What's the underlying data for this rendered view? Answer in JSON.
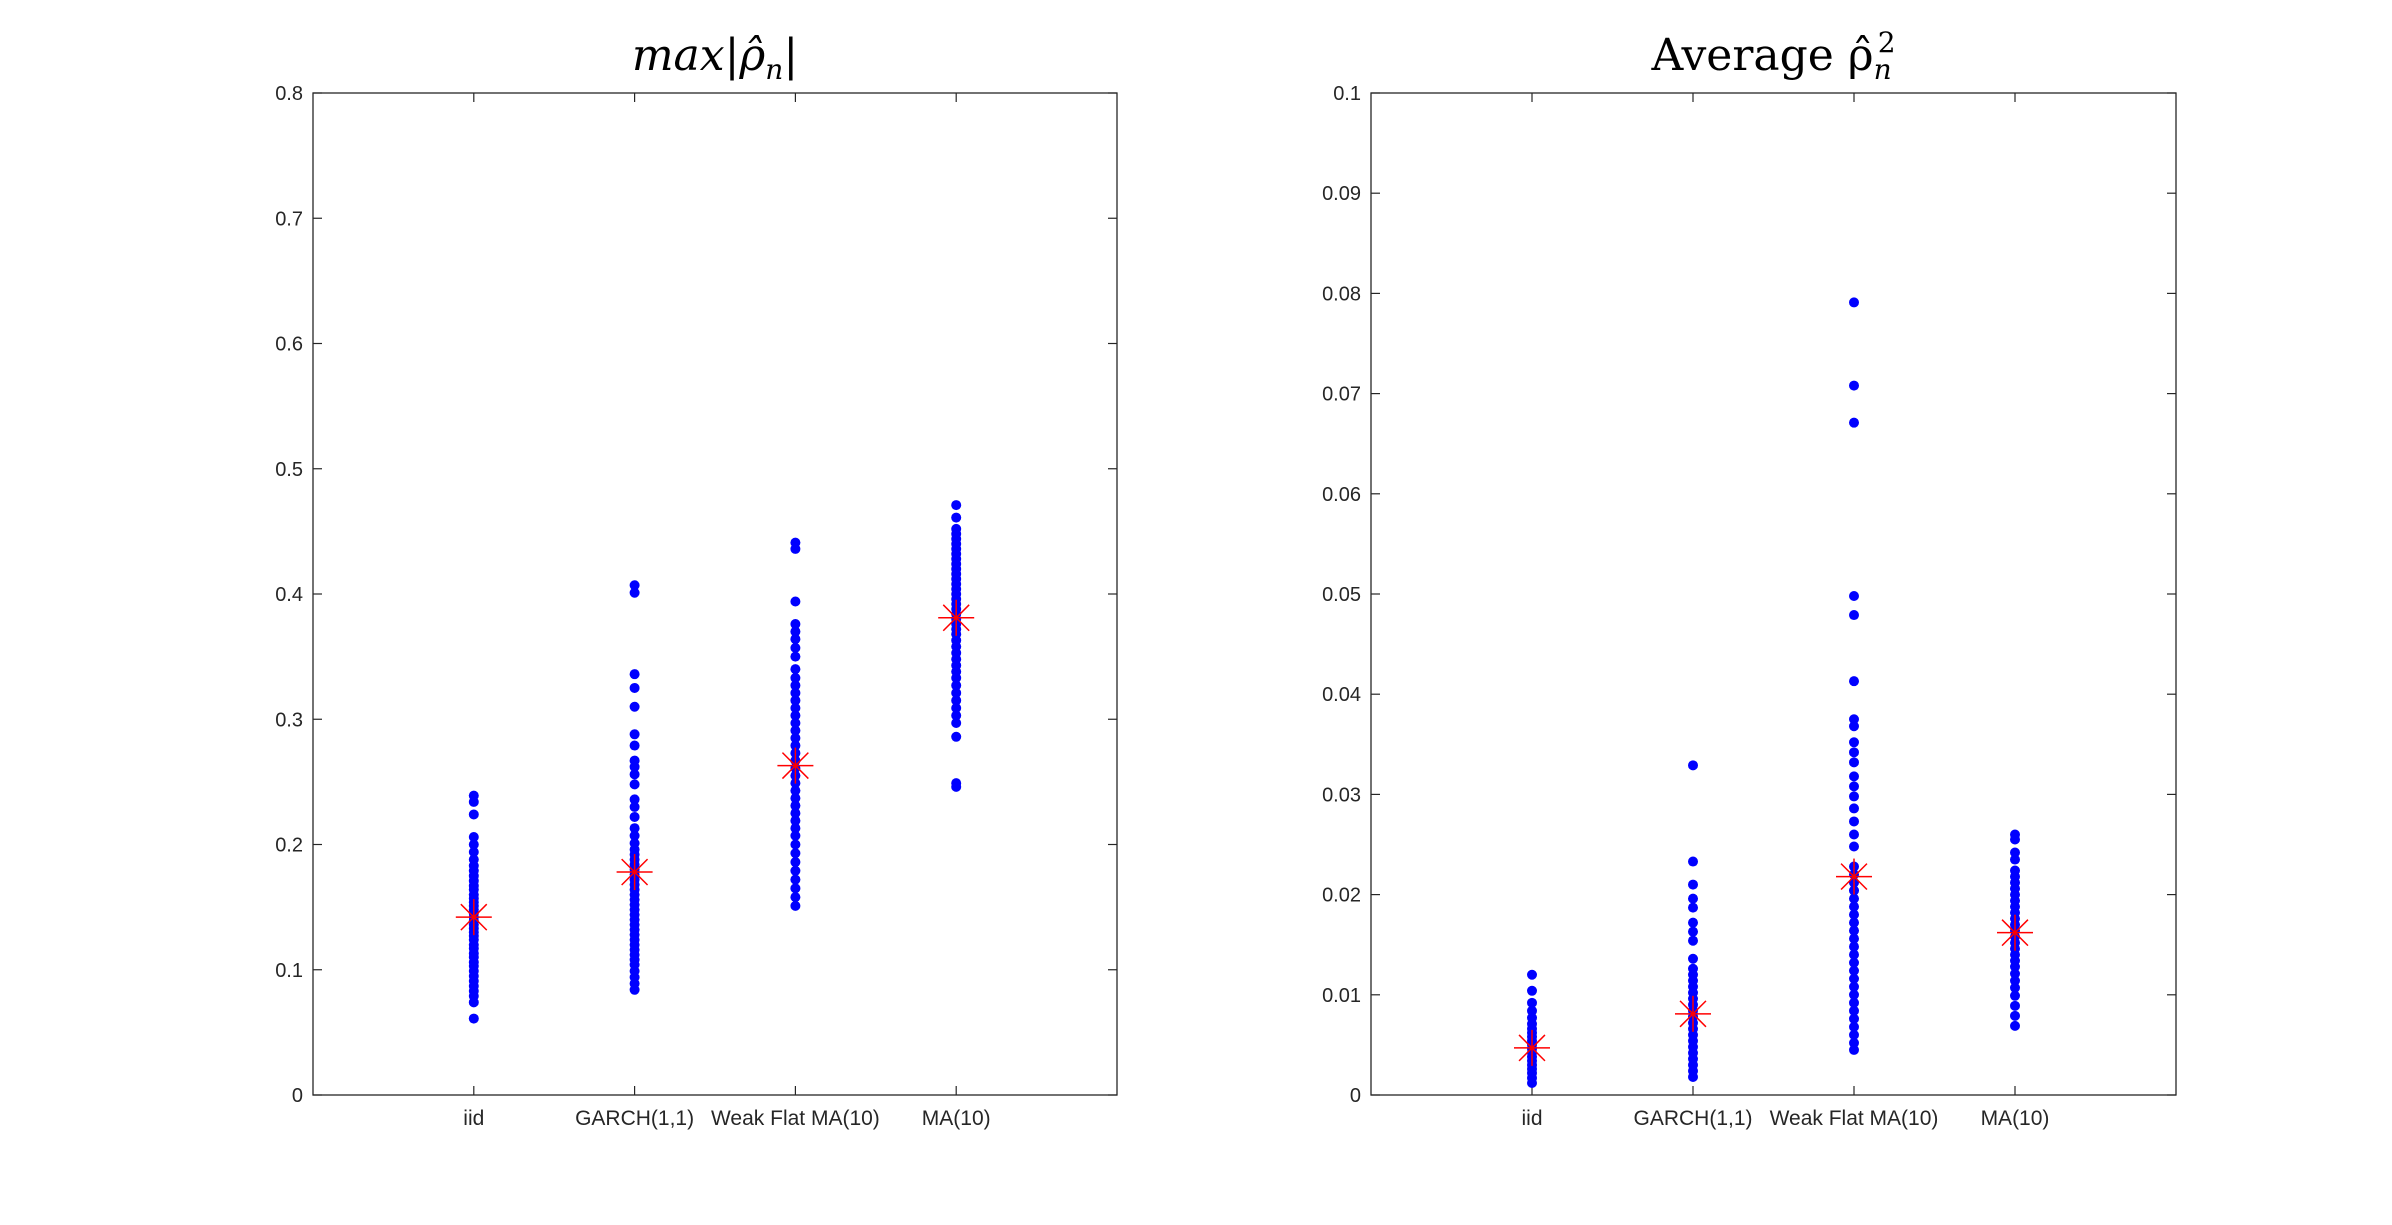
{
  "chart_data": [
    {
      "type": "scatter",
      "title_main": "max|ρ̂",
      "title_sub": "n",
      "title_end": "|",
      "categories": [
        "iid",
        "GARCH(1,1)",
        "Weak Flat MA(10)",
        "MA(10)"
      ],
      "ylim": [
        0,
        0.8
      ],
      "yticks": [
        0,
        0.1,
        0.2,
        0.3,
        0.4,
        0.5,
        0.6,
        0.7,
        0.8
      ],
      "ytick_labels": [
        "0",
        "0.1",
        "0.2",
        "0.3",
        "0.4",
        "0.5",
        "0.6",
        "0.7",
        "0.8"
      ],
      "grid": false,
      "point_color": "#0000ff",
      "mean_color": "#ff0000",
      "series": [
        {
          "values": [
            0.061,
            0.074,
            0.079,
            0.083,
            0.087,
            0.091,
            0.095,
            0.099,
            0.103,
            0.106,
            0.11,
            0.113,
            0.117,
            0.12,
            0.124,
            0.127,
            0.13,
            0.133,
            0.136,
            0.139,
            0.142,
            0.145,
            0.148,
            0.151,
            0.154,
            0.157,
            0.16,
            0.164,
            0.167,
            0.171,
            0.175,
            0.179,
            0.183,
            0.188,
            0.194,
            0.2,
            0.206,
            0.224,
            0.234,
            0.239
          ],
          "mean": 0.142
        },
        {
          "values": [
            0.084,
            0.089,
            0.094,
            0.099,
            0.104,
            0.108,
            0.112,
            0.116,
            0.12,
            0.124,
            0.128,
            0.132,
            0.136,
            0.14,
            0.144,
            0.148,
            0.152,
            0.156,
            0.16,
            0.164,
            0.168,
            0.172,
            0.176,
            0.18,
            0.184,
            0.188,
            0.192,
            0.196,
            0.201,
            0.207,
            0.213,
            0.222,
            0.23,
            0.236,
            0.248,
            0.256,
            0.262,
            0.267,
            0.279,
            0.288,
            0.31,
            0.325,
            0.336,
            0.401,
            0.407
          ],
          "mean": 0.178
        },
        {
          "values": [
            0.151,
            0.158,
            0.165,
            0.172,
            0.179,
            0.186,
            0.193,
            0.2,
            0.207,
            0.213,
            0.219,
            0.225,
            0.231,
            0.237,
            0.243,
            0.249,
            0.255,
            0.261,
            0.267,
            0.273,
            0.279,
            0.285,
            0.291,
            0.297,
            0.303,
            0.309,
            0.315,
            0.321,
            0.327,
            0.333,
            0.34,
            0.35,
            0.357,
            0.364,
            0.37,
            0.376,
            0.394,
            0.436,
            0.441
          ],
          "mean": 0.263
        },
        {
          "values": [
            0.246,
            0.249,
            0.286,
            0.297,
            0.303,
            0.309,
            0.315,
            0.321,
            0.327,
            0.333,
            0.338,
            0.343,
            0.348,
            0.353,
            0.358,
            0.363,
            0.368,
            0.372,
            0.376,
            0.38,
            0.384,
            0.388,
            0.392,
            0.396,
            0.4,
            0.404,
            0.408,
            0.412,
            0.416,
            0.42,
            0.424,
            0.428,
            0.432,
            0.436,
            0.44,
            0.444,
            0.448,
            0.452,
            0.461,
            0.471
          ],
          "mean": 0.381
        }
      ]
    },
    {
      "type": "scatter",
      "title_main": "Average ρ̂",
      "title_sub": "n",
      "title_sup": "2",
      "categories": [
        "iid",
        "GARCH(1,1)",
        "Weak Flat MA(10)",
        "MA(10)"
      ],
      "ylim": [
        0,
        0.1
      ],
      "yticks": [
        0,
        0.01,
        0.02,
        0.03,
        0.04,
        0.05,
        0.06,
        0.07,
        0.08,
        0.09,
        0.1
      ],
      "ytick_labels": [
        "0",
        "0.01",
        "0.02",
        "0.03",
        "0.04",
        "0.05",
        "0.06",
        "0.07",
        "0.08",
        "0.09",
        "0.1"
      ],
      "grid": false,
      "point_color": "#0000ff",
      "mean_color": "#ff0000",
      "series": [
        {
          "values": [
            0.0012,
            0.0017,
            0.0022,
            0.0026,
            0.003,
            0.0034,
            0.0038,
            0.0042,
            0.0046,
            0.005,
            0.0054,
            0.0058,
            0.0062,
            0.0066,
            0.0071,
            0.0077,
            0.0084,
            0.0092,
            0.0104,
            0.012
          ],
          "mean": 0.0047
        },
        {
          "values": [
            0.0018,
            0.0024,
            0.003,
            0.0036,
            0.0042,
            0.0048,
            0.0054,
            0.006,
            0.0066,
            0.0072,
            0.0078,
            0.0084,
            0.009,
            0.0096,
            0.0102,
            0.0108,
            0.0114,
            0.012,
            0.0126,
            0.0136,
            0.0154,
            0.0163,
            0.0172,
            0.0187,
            0.0196,
            0.021,
            0.0233,
            0.0329
          ],
          "mean": 0.0081
        },
        {
          "values": [
            0.0045,
            0.0052,
            0.006,
            0.0068,
            0.0076,
            0.0084,
            0.0092,
            0.01,
            0.0108,
            0.0116,
            0.0124,
            0.0132,
            0.014,
            0.0148,
            0.0156,
            0.0164,
            0.0172,
            0.018,
            0.0188,
            0.0196,
            0.0204,
            0.0212,
            0.022,
            0.0228,
            0.0248,
            0.026,
            0.0273,
            0.0286,
            0.0298,
            0.0308,
            0.0318,
            0.0332,
            0.0342,
            0.0352,
            0.0368,
            0.0375,
            0.0413,
            0.0479,
            0.0498,
            0.0671,
            0.0708,
            0.0791
          ],
          "mean": 0.0218
        },
        {
          "values": [
            0.0069,
            0.0079,
            0.0089,
            0.0099,
            0.0107,
            0.0114,
            0.0121,
            0.0128,
            0.0134,
            0.014,
            0.0146,
            0.0152,
            0.0158,
            0.0164,
            0.017,
            0.0176,
            0.0182,
            0.0188,
            0.0194,
            0.02,
            0.0206,
            0.0212,
            0.0218,
            0.0224,
            0.0235,
            0.0242,
            0.0255,
            0.026
          ],
          "mean": 0.0162
        }
      ]
    }
  ]
}
